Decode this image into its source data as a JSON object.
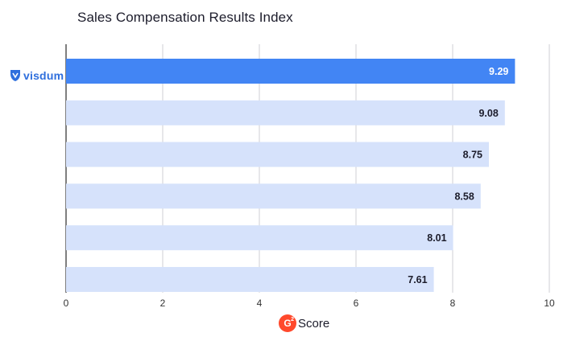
{
  "chart_data": {
    "type": "bar",
    "orientation": "horizontal",
    "title": "Sales Compensation Results Index",
    "categories": [
      "visdum",
      "",
      "",
      "",
      "",
      ""
    ],
    "values": [
      9.29,
      9.08,
      8.75,
      8.58,
      8.01,
      7.61
    ],
    "data_labels": [
      "9.29",
      "9.08",
      "8.75",
      "8.58",
      "8.01",
      "7.61"
    ],
    "xlabel": "Score",
    "xlim": [
      0,
      10
    ],
    "xticks": [
      0,
      2,
      4,
      6,
      8,
      10
    ],
    "grid": true,
    "highlight_index": 0
  },
  "brand": {
    "name": "visdum",
    "icon": "visdum-shield-icon",
    "color": "#2f6fdd"
  },
  "xaxis_brand": {
    "logo_text": "G",
    "logo_sup": "2",
    "icon": "g2-logo-icon",
    "color": "#ff492c"
  },
  "colors": {
    "highlight_bar": "#4285f4",
    "bar": "#d6e2fb",
    "grid": "#cfcfd4",
    "label_on_highlight": "#ffffff",
    "label": "#1c1c2b"
  }
}
